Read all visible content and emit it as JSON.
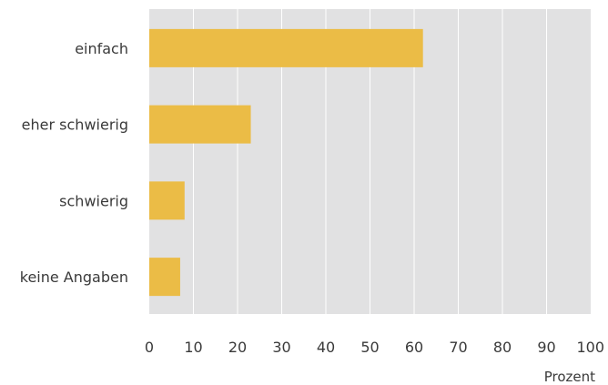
{
  "chart_data": {
    "type": "bar",
    "orientation": "horizontal",
    "categories": [
      "einfach",
      "eher schwierig",
      "schwierig",
      "keine Angaben"
    ],
    "values": [
      62,
      23,
      8,
      7
    ],
    "xlabel": "Prozent",
    "xlim": [
      0,
      100
    ],
    "xticks": [
      0,
      10,
      20,
      30,
      40,
      50,
      60,
      70,
      80,
      90,
      100
    ],
    "grid": true,
    "colors": {
      "bar": "#EBBC46",
      "plot_background": "#E1E1E2",
      "gridline": "#FFFFFF"
    }
  }
}
